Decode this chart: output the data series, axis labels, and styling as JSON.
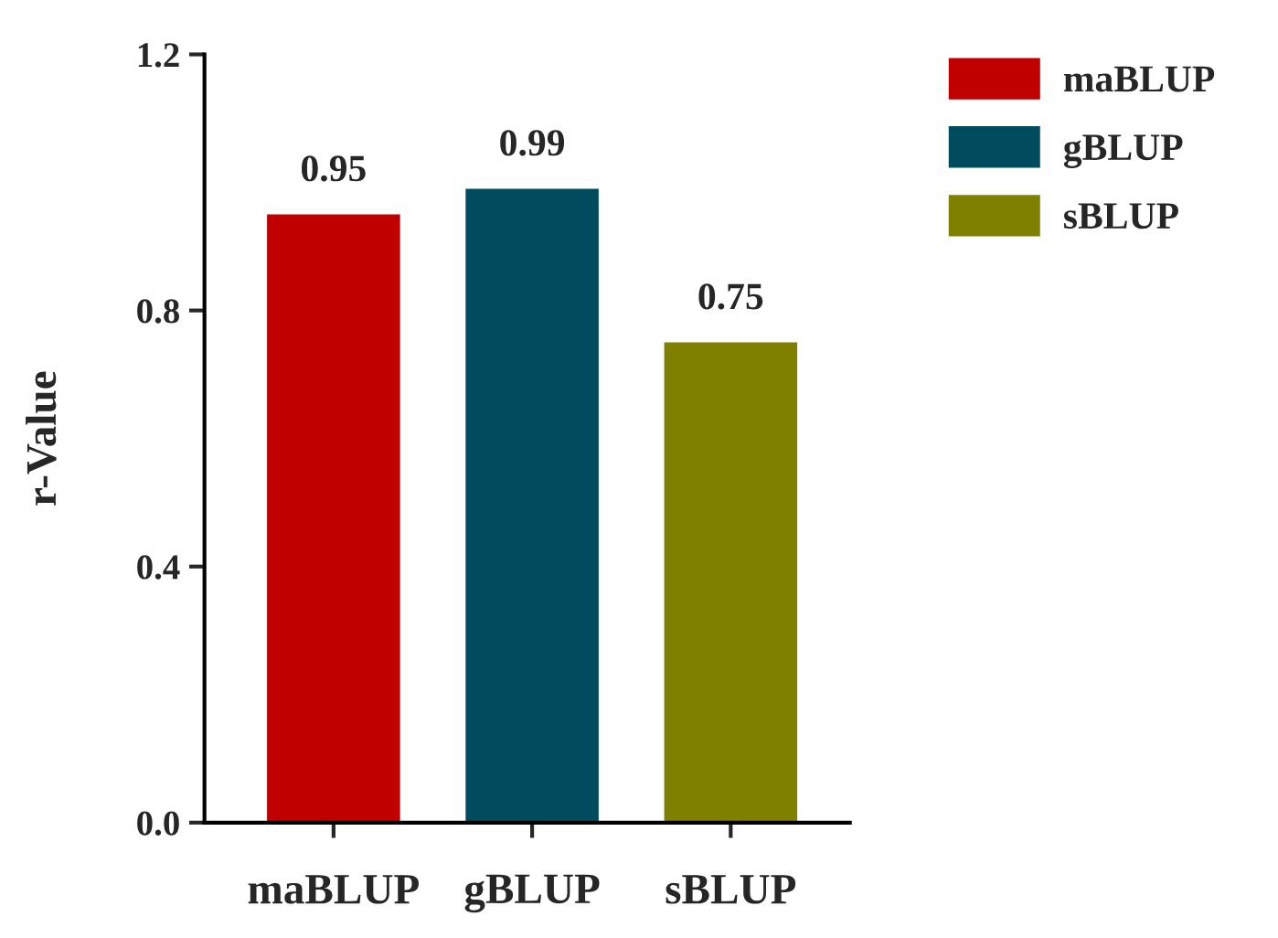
{
  "chart_data": {
    "type": "bar",
    "ylabel": "r-Value",
    "categories": [
      "maBLUP",
      "gBLUP",
      "sBLUP"
    ],
    "series": [
      {
        "name": "maBLUP",
        "color": "#c00000",
        "values": [
          0.95,
          null,
          null
        ]
      },
      {
        "name": "gBLUP",
        "color": "#004c5e",
        "values": [
          null,
          0.99,
          null
        ]
      },
      {
        "name": "sBLUP",
        "color": "#808000",
        "values": [
          null,
          null,
          0.75
        ]
      }
    ],
    "ylim": [
      0,
      1.2
    ],
    "yticks": [
      {
        "value": 0,
        "label": "0.0"
      },
      {
        "value": 0.4,
        "label": "0.4"
      },
      {
        "value": 0.8,
        "label": "0.8"
      },
      {
        "value": 1.2,
        "label": "1.2"
      }
    ],
    "data_labels": true,
    "grid": false,
    "legend": "top right"
  }
}
